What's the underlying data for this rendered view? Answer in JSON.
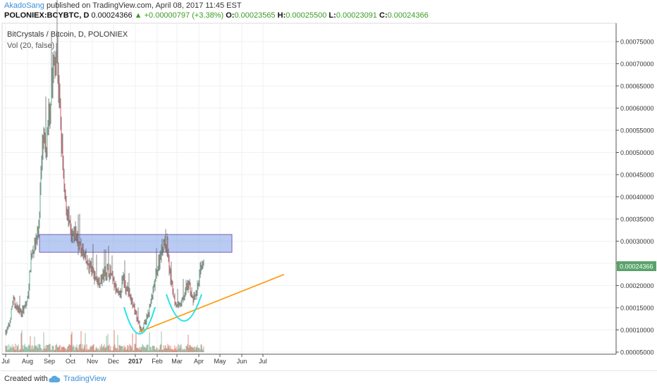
{
  "header": {
    "author": "AkadoSang",
    "published": "published on TradingView.com, April 08, 2017 11:45 EST",
    "symbol": "POLONIEX:BCYBTC, D",
    "last": "0.00024366",
    "change": "▲ +0.00000797 (+3.38%)",
    "o_label": "O:",
    "o_value": "0.00023565",
    "h_label": "H:",
    "h_value": "0.00025500",
    "l_label": "L:",
    "l_value": "0.00023091",
    "c_label": "C:",
    "c_value": "0.00024366"
  },
  "legend": {
    "title": "BitCrystals / Bitcoin, D, POLONIEX",
    "vol": "Vol (20, false)"
  },
  "footer": {
    "created": "Created with",
    "brand": "TradingView"
  },
  "colors": {
    "up": "#53b987",
    "down": "#eb4d5c",
    "wick": "#555555",
    "vol_up": "#6ba583",
    "vol_down": "#d75442",
    "zone_fill": "#7fa1e8",
    "zone_border": "#7a5fb8",
    "trendline": "#ff9800",
    "arc": "#29e3e8",
    "price_tag": "#5aa36a"
  },
  "chart_data": {
    "type": "candlestick",
    "y_axis": {
      "ticks": [
        "0.00075000",
        "0.00070000",
        "0.00065000",
        "0.00060000",
        "0.00055000",
        "0.00050000",
        "0.00045000",
        "0.00040000",
        "0.00035000",
        "0.00030000",
        "0.00025000",
        "0.00020000",
        "0.00015000",
        "0.00010000",
        "0.00005000"
      ],
      "range": [
        2.5e-05,
        0.000775
      ]
    },
    "x_axis": {
      "labels": [
        "Jul",
        "Aug",
        "Sep",
        "Oct",
        "Nov",
        "Dec",
        "2017",
        "Feb",
        "Mar",
        "Apr",
        "May",
        "Jun",
        "Jul"
      ],
      "bold": [
        "2017"
      ]
    },
    "last_price": "0.00024366",
    "resistance_zone": {
      "from": "Aug 2016",
      "to": "Apr 2017",
      "low": 0.000275,
      "high": 0.000315
    },
    "trendline": {
      "start": {
        "date": "2017-01-06",
        "price": 9.5e-05
      },
      "end": {
        "date": "2017-07-31",
        "price": 0.000225
      }
    },
    "arcs": [
      {
        "from": "2016-12-16",
        "to": "2017-01-29",
        "low": 8.8e-05
      },
      {
        "from": "2017-02-14",
        "to": "2017-04-05",
        "low": 0.000117
      }
    ],
    "series": [
      {
        "values": [
          9.5e-05,
          0.000112,
          0.000168,
          0.00015,
          0.00014,
          0.000145,
          0.00017,
          0.00027,
          0.000295,
          0.00033,
          0.00052,
          0.0005,
          0.0006,
          0.00069,
          0.00072,
          0.00056,
          0.0004,
          0.00036,
          0.0003,
          0.00032,
          0.00029,
          0.000275,
          0.00025,
          0.000245,
          0.000225,
          0.00021,
          0.000215,
          0.000225,
          0.000238,
          0.000215,
          0.00019,
          0.000175,
          0.000215,
          0.000195,
          0.00017,
          0.00015,
          0.00012,
          0.0001,
          0.000115,
          0.00014,
          0.00018,
          0.00022,
          0.000265,
          0.0003,
          0.00029,
          0.00021,
          0.00017,
          0.00015,
          0.00016,
          0.00019,
          0.000205,
          0.000165,
          0.00018,
          0.00023,
          0.000244
        ]
      }
    ]
  }
}
